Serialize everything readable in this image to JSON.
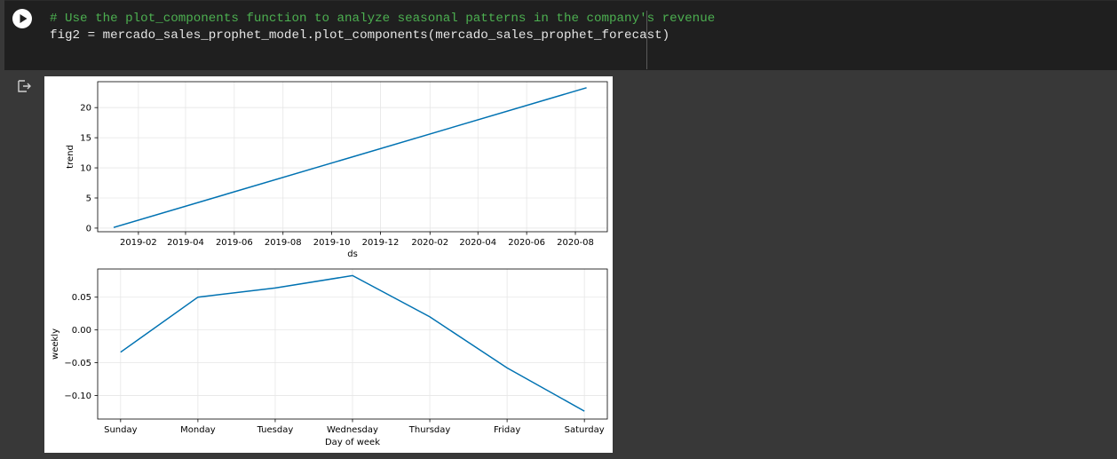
{
  "code_cell": {
    "lines": [
      "# Use the plot_components function to analyze seasonal patterns in the company's revenue",
      "fig2 = mercado_sales_prophet_model.plot_components(mercado_sales_prophet_forecast)"
    ],
    "run_icon": "play-icon",
    "output_icon": "output-redirect-icon"
  },
  "colors": {
    "line": "#0072b2",
    "comment": "#4caf50",
    "code": "#e6e6e6",
    "background": "#383838",
    "code_background": "#1f1f1f"
  },
  "chart_data": [
    {
      "type": "line",
      "xlabel": "ds",
      "ylabel": "trend",
      "x_ticks": [
        "2019-02",
        "2019-04",
        "2019-06",
        "2019-08",
        "2019-10",
        "2019-12",
        "2020-02",
        "2020-04",
        "2020-06",
        "2020-08"
      ],
      "y_ticks": [
        0,
        5,
        10,
        15,
        20
      ],
      "ylim": [
        -0.6,
        24.3
      ],
      "xlim": [
        "2018-12-12",
        "2020-09-10"
      ],
      "x": [
        "2019-01-01",
        "2020-08-15"
      ],
      "y": [
        0.1,
        23.3
      ],
      "grid": true
    },
    {
      "type": "line",
      "xlabel": "Day of week",
      "ylabel": "weekly",
      "categories": [
        "Sunday",
        "Monday",
        "Tuesday",
        "Wednesday",
        "Thursday",
        "Friday",
        "Saturday"
      ],
      "values": [
        -0.034,
        0.05,
        0.064,
        0.083,
        0.02,
        -0.058,
        -0.124
      ],
      "y_ticks": [
        -0.1,
        -0.05,
        0.0,
        0.05
      ],
      "y_tick_labels": [
        "−0.10",
        "−0.05",
        "0.00",
        "0.05"
      ],
      "ylim": [
        -0.136,
        0.093
      ],
      "grid": true
    }
  ]
}
